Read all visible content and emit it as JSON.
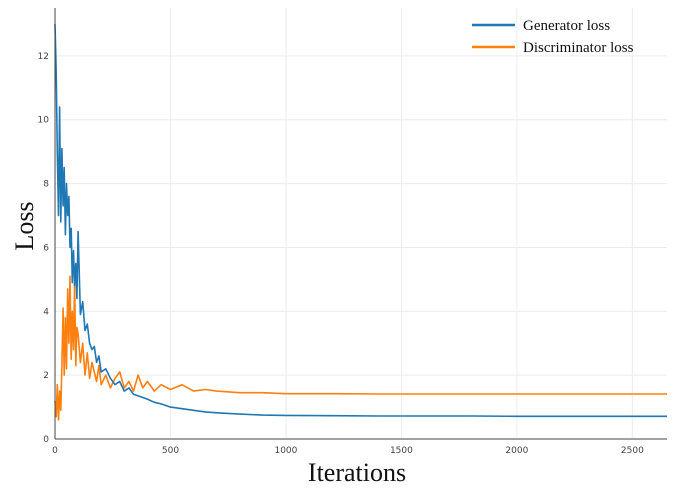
{
  "chart_data": {
    "type": "line",
    "title": "",
    "xlabel": "Iterations",
    "ylabel": "Loss",
    "xlim": [
      0,
      2650
    ],
    "ylim": [
      0,
      13.5
    ],
    "x_ticks": [
      0,
      500,
      1000,
      1500,
      2000,
      2500
    ],
    "y_ticks": [
      0,
      2,
      4,
      6,
      8,
      10,
      12
    ],
    "grid": true,
    "legend": "top-right",
    "series": [
      {
        "name": "Generator loss",
        "color": "#1f77b4",
        "x": [
          0,
          5,
          10,
          15,
          20,
          25,
          30,
          35,
          40,
          45,
          50,
          55,
          60,
          65,
          70,
          75,
          80,
          85,
          90,
          95,
          100,
          110,
          120,
          130,
          140,
          150,
          160,
          170,
          180,
          190,
          200,
          220,
          240,
          260,
          280,
          300,
          320,
          340,
          360,
          380,
          400,
          430,
          460,
          500,
          550,
          600,
          650,
          700,
          800,
          900,
          1000,
          1200,
          1400,
          1600,
          1800,
          2000,
          2200,
          2400,
          2650
        ],
        "y": [
          13.0,
          11.5,
          9.0,
          7.0,
          10.4,
          6.8,
          9.1,
          7.3,
          8.5,
          6.4,
          8.0,
          7.0,
          7.6,
          6.0,
          6.6,
          4.9,
          5.9,
          4.8,
          5.5,
          4.4,
          6.5,
          3.9,
          4.3,
          3.4,
          3.6,
          3.0,
          2.8,
          2.9,
          2.4,
          2.6,
          2.1,
          2.2,
          1.9,
          1.7,
          1.8,
          1.5,
          1.6,
          1.4,
          1.35,
          1.3,
          1.25,
          1.15,
          1.1,
          1.0,
          0.95,
          0.9,
          0.85,
          0.82,
          0.78,
          0.75,
          0.74,
          0.73,
          0.72,
          0.72,
          0.72,
          0.71,
          0.71,
          0.71,
          0.71
        ]
      },
      {
        "name": "Discriminator loss",
        "color": "#ff7f0e",
        "x": [
          0,
          5,
          10,
          15,
          20,
          25,
          30,
          35,
          40,
          45,
          50,
          55,
          60,
          65,
          70,
          75,
          80,
          85,
          90,
          95,
          100,
          110,
          120,
          130,
          140,
          150,
          160,
          170,
          180,
          190,
          200,
          220,
          240,
          260,
          280,
          300,
          320,
          340,
          360,
          380,
          400,
          430,
          460,
          500,
          550,
          600,
          650,
          700,
          800,
          900,
          1000,
          1200,
          1400,
          1600,
          1800,
          2000,
          2200,
          2400,
          2650
        ],
        "y": [
          1.2,
          0.7,
          1.7,
          0.6,
          1.5,
          0.9,
          2.3,
          4.1,
          2.0,
          3.8,
          2.2,
          4.7,
          3.0,
          5.1,
          2.5,
          4.0,
          2.8,
          4.9,
          2.3,
          3.5,
          3.3,
          2.4,
          3.0,
          2.0,
          2.7,
          1.9,
          2.4,
          2.1,
          1.8,
          2.3,
          1.7,
          2.0,
          1.6,
          1.9,
          2.1,
          1.6,
          1.8,
          1.5,
          2.0,
          1.6,
          1.8,
          1.5,
          1.7,
          1.55,
          1.7,
          1.5,
          1.55,
          1.5,
          1.45,
          1.45,
          1.42,
          1.42,
          1.41,
          1.41,
          1.41,
          1.41,
          1.41,
          1.41,
          1.41
        ]
      }
    ]
  }
}
